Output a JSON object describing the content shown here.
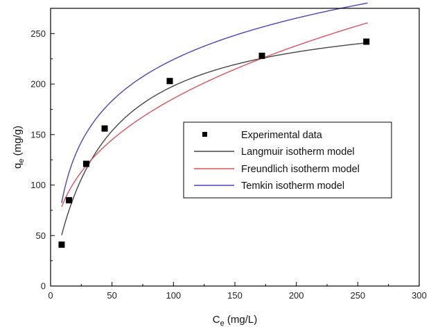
{
  "chart_data": {
    "type": "scatter",
    "xlabel": {
      "main": "C",
      "sub": "e",
      "unit": " (mg/L)"
    },
    "ylabel": {
      "main": "q",
      "sub": "e",
      "unit": " (mg/g)"
    },
    "xlim": [
      0,
      300
    ],
    "ylim": [
      0,
      275
    ],
    "x_ticks": [
      "0",
      "50",
      "100",
      "150",
      "200",
      "250",
      "300"
    ],
    "y_ticks": [
      "0",
      "50",
      "100",
      "150",
      "200",
      "250"
    ],
    "x_tick_values": [
      0,
      50,
      100,
      150,
      200,
      250,
      300
    ],
    "y_tick_values": [
      0,
      50,
      100,
      150,
      200,
      250
    ],
    "grid": false,
    "legend_position": "center-right",
    "experimental": {
      "name": "Experimental data",
      "color": "#000000",
      "x": [
        9,
        15,
        29,
        44,
        97,
        172,
        257
      ],
      "y": [
        41,
        85,
        121,
        156,
        203,
        228,
        242
      ]
    },
    "series": [
      {
        "name": "Langmuir isotherm model",
        "color": "#444444",
        "model": "langmuir",
        "params": {
          "qmax": 279,
          "KL": 0.0245
        },
        "x_range": [
          9,
          258
        ]
      },
      {
        "name": "Freundlich isotherm model",
        "color": "#d9535a",
        "model": "freundlich",
        "params": {
          "KF": 35.7,
          "n": 2.793
        },
        "x_range": [
          9,
          258
        ]
      },
      {
        "name": "Temkin isotherm model",
        "color": "#4a44b8",
        "model": "temkin",
        "params": {
          "B": 59.0,
          "A": 0.448
        },
        "x_range": [
          9,
          258
        ]
      }
    ]
  }
}
